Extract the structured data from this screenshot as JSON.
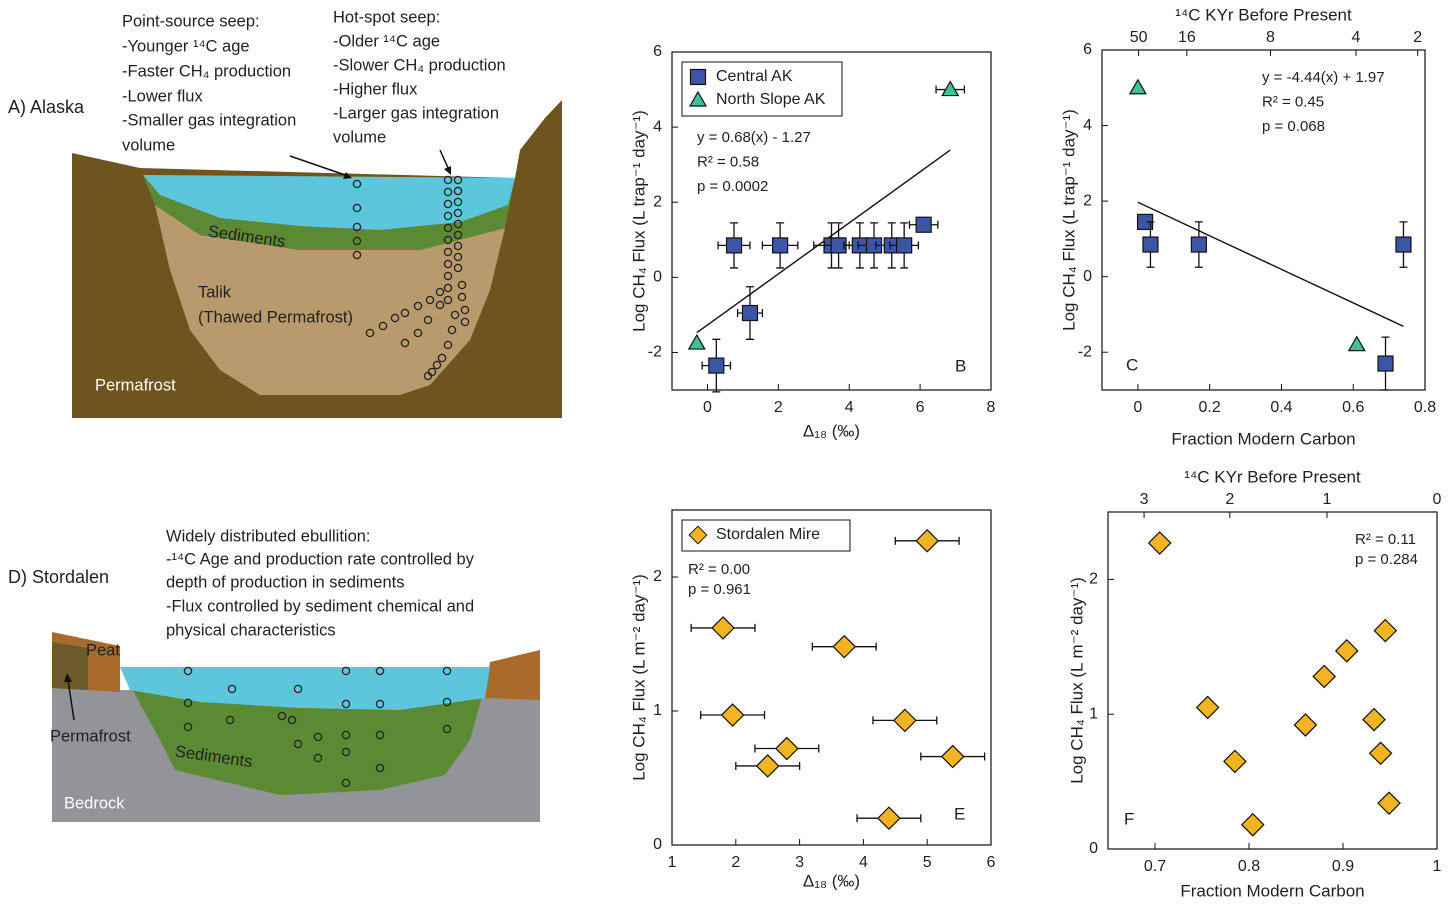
{
  "diagrams": [
    {
      "label": "A) Alaska",
      "point_source": [
        "Point-source seep:",
        "-Younger ¹⁴C age",
        "-Faster CH₄ production",
        "-Lower flux",
        "-Smaller gas integration",
        "volume"
      ],
      "hot_spot": [
        "Hot-spot seep:",
        "-Older ¹⁴C age",
        "-Slower CH₄ production",
        "-Higher flux",
        "-Larger gas integration",
        "volume"
      ],
      "layers": [
        "Sediments",
        "Talik",
        "(Thawed Permafrost)",
        "Permafrost"
      ]
    },
    {
      "label": "D) Stordalen",
      "description": [
        "Widely distributed ebullition:",
        "-¹⁴C Age and production rate controlled by",
        "depth of production in sediments",
        "-Flux controlled by sediment chemical and",
        "physical characteristics"
      ],
      "layers": [
        "Peat",
        "Permafrost",
        "Sediments",
        "Bedrock"
      ]
    }
  ],
  "chart_data": [
    {
      "type": "scatter",
      "panel": "B",
      "xlabel": "Δ₁₈ (‰)",
      "ylabel": "Log CH₄ Flux (L trap⁻¹ day⁻¹)",
      "xlim": [
        -1,
        8
      ],
      "ylim": [
        -3,
        6
      ],
      "xticks": [
        0,
        2,
        4,
        6,
        8
      ],
      "yticks": [
        -2,
        0,
        2,
        4,
        6
      ],
      "legend": "upper left",
      "annotations": [
        "y = 0.68(x) - 1.27",
        "R² = 0.58",
        "p = 0.0002"
      ],
      "fit": {
        "slope": 0.68,
        "intercept": -1.27
      },
      "series": [
        {
          "name": "Central AK",
          "color": "#3b56a5",
          "marker": "square",
          "x": [
            0.25,
            0.75,
            1.2,
            2.05,
            3.5,
            3.7,
            4.3,
            4.7,
            5.2,
            5.55,
            6.1
          ],
          "values": [
            -2.35,
            0.85,
            -0.95,
            0.85,
            0.85,
            0.85,
            0.85,
            0.85,
            0.85,
            0.85,
            1.4
          ],
          "x_err": [
            0.4,
            0.45,
            0.35,
            0.5,
            0.5,
            0.4,
            0.45,
            0.45,
            0.45,
            0.4,
            0.4
          ],
          "y_err": [
            0.7,
            0.6,
            0.7,
            0.6,
            0.6,
            0.6,
            0.6,
            0.6,
            0.6,
            0.6,
            null
          ]
        },
        {
          "name": "North Slope AK",
          "color": "#3fbf9a",
          "marker": "triangle",
          "x": [
            -0.3,
            6.85
          ],
          "values": [
            -1.75,
            5.0
          ],
          "x_err": [
            null,
            0.4
          ],
          "y_err": [
            null,
            null
          ]
        }
      ]
    },
    {
      "type": "scatter",
      "panel": "C",
      "xlabel": "Fraction Modern Carbon",
      "ylabel": "Log CH₄ Flux (L trap⁻¹ day⁻¹)",
      "x2label": "¹⁴C KYr Before Present",
      "x2ticks": [
        50,
        16,
        8,
        4,
        2
      ],
      "xlim": [
        -0.1,
        0.8
      ],
      "ylim": [
        -3,
        6
      ],
      "xticks": [
        0,
        0.2,
        0.4,
        0.6,
        0.8
      ],
      "yticks": [
        -2,
        0,
        2,
        4,
        6
      ],
      "annotations": [
        "y = -4.44(x) + 1.97",
        "R² = 0.45",
        "p = 0.068"
      ],
      "fit": {
        "slope": -4.44,
        "intercept": 1.97
      },
      "series": [
        {
          "color": "#3b56a5",
          "marker": "square",
          "x": [
            0.02,
            0.035,
            0.17,
            0.74,
            0.69
          ],
          "values": [
            1.45,
            0.85,
            0.85,
            0.85,
            -2.3
          ],
          "y_err": [
            null,
            0.6,
            0.6,
            0.6,
            0.7
          ]
        },
        {
          "color": "#3fbf9a",
          "marker": "triangle",
          "x": [
            0.0,
            0.61
          ],
          "values": [
            5.0,
            -1.8
          ]
        }
      ]
    },
    {
      "type": "scatter",
      "panel": "E",
      "xlabel": "Δ₁₈ (‰)",
      "ylabel": "Log CH₄ Flux (L m⁻² day⁻¹)",
      "xlim": [
        1,
        6
      ],
      "ylim": [
        0,
        2.5
      ],
      "xticks": [
        1,
        2,
        3,
        4,
        5,
        6
      ],
      "yticks": [
        0,
        1,
        2
      ],
      "legend": "upper left",
      "annotations": [
        "R² = 0.00",
        "p = 0.961"
      ],
      "series": [
        {
          "name": "Stordalen Mire",
          "color": "#f4b321",
          "marker": "diamond",
          "x": [
            5.0,
            1.8,
            3.7,
            1.95,
            4.65,
            2.8,
            5.4,
            2.5,
            4.4
          ],
          "values": [
            2.27,
            1.62,
            1.48,
            0.97,
            0.93,
            0.72,
            0.66,
            0.59,
            0.2
          ],
          "x_err": [
            0.5,
            0.5,
            0.5,
            0.5,
            0.5,
            0.5,
            0.5,
            0.5,
            0.5
          ]
        }
      ]
    },
    {
      "type": "scatter",
      "panel": "F",
      "xlabel": "Fraction Modern Carbon",
      "ylabel": "Log CH₄ Flux (L m⁻² day⁻¹)",
      "x2label": "¹⁴C KYr Before Present",
      "x2ticks": [
        3,
        2,
        1,
        0
      ],
      "xlim": [
        0.65,
        1
      ],
      "ylim": [
        0,
        2.5
      ],
      "xticks": [
        0.7,
        0.8,
        0.9,
        1
      ],
      "yticks": [
        0,
        1,
        2
      ],
      "annotations": [
        "R² = 0.11",
        "p = 0.284"
      ],
      "series": [
        {
          "color": "#f4b321",
          "marker": "diamond",
          "x": [
            0.705,
            0.756,
            0.785,
            0.804,
            0.86,
            0.88,
            0.904,
            0.933,
            0.94,
            0.945,
            0.949
          ],
          "values": [
            2.27,
            1.05,
            0.65,
            0.18,
            0.92,
            1.28,
            1.47,
            0.96,
            0.71,
            1.62,
            0.34
          ]
        }
      ]
    }
  ]
}
